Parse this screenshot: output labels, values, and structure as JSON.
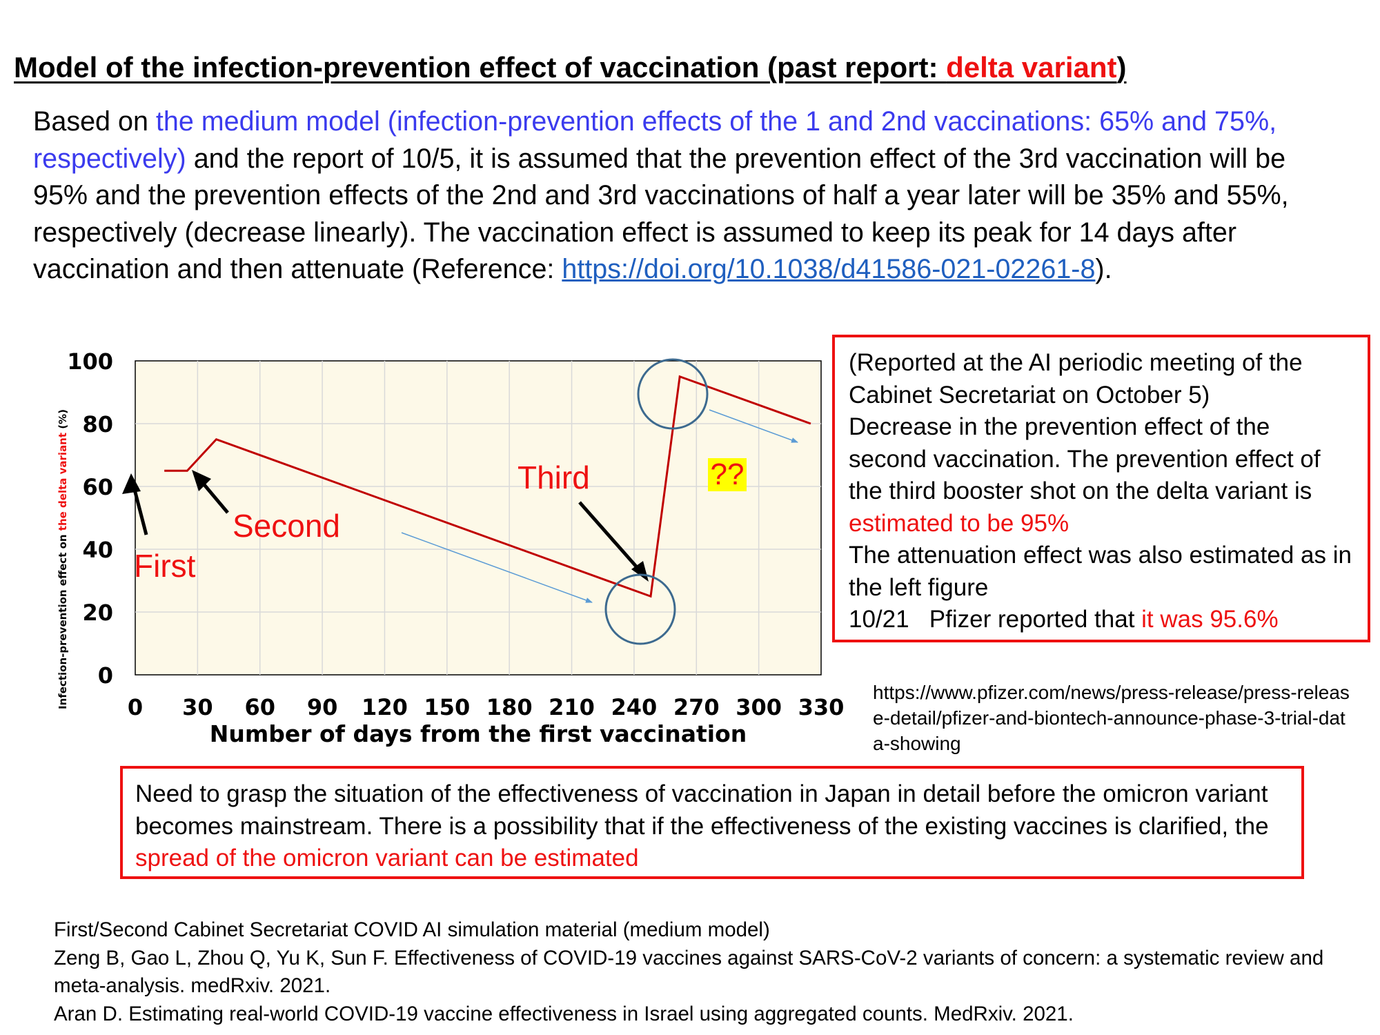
{
  "title": {
    "main": "Model of the infection-prevention effect of vaccination (past report: ",
    "highlight": "delta variant",
    "close": ")"
  },
  "intro": {
    "p1": "Based on ",
    "p2_blue": "the medium model (infection-prevention effects of the 1 and 2nd vaccinations: 65% and 75%, respectively)",
    "p3": " and the report of 10/5, it is assumed that the prevention effect of the 3rd vaccination will be 95% and the prevention effects of the 2nd and 3rd vaccinations of half a year later will be 35% and 55%, respectively (decrease linearly). The vaccination effect is assumed to keep its peak for 14 days after vaccination and then attenuate (Reference: ",
    "link": "https://doi.org/10.1038/d41586-021-02261-8",
    "p4": ")."
  },
  "annotation_box": {
    "line1": "(Reported at the AI periodic meeting of the Cabinet Secretariat on October 5)",
    "line2": "Decrease in the prevention effect of the second vaccination. The prevention effect of the third booster shot on the delta variant is ",
    "line2_red": "estimated to be 95%",
    "line3": "The attenuation effect was also estimated as in the left figure",
    "line4": "10/21   Pfizer reported that ",
    "line4_red": "it was 95.6%"
  },
  "source_link": "https://www.pfizer.com/news/press-release/press-release-detail/pfizer-and-biontech-announce-phase-3-trial-data-showing",
  "need_box": {
    "text": "Need to grasp the situation of the effectiveness of vaccination in Japan in detail before the omicron variant becomes mainstream. There is a possibility that if the effectiveness of the existing vaccines is clarified, the ",
    "text_red": "spread of the omicron variant can be estimated"
  },
  "references": [
    "First/Second Cabinet Secretariat COVID AI simulation material (medium model)",
    "Zeng B, Gao L, Zhou Q, Yu K, Sun F. Effectiveness of COVID-19 vaccines against SARS-CoV-2 variants of concern: a systematic review and meta-analysis. medRxiv. 2021.",
    "Aran D. Estimating real-world COVID-19 vaccine effectiveness in Israel using aggregated counts. MedRxiv. 2021."
  ],
  "colors": {
    "line": "#c00000",
    "plot_bg": "#fdf9e8",
    "accent_red": "#ee1111",
    "circle": "#3d6a8f",
    "thin_arrow": "#5b9bd5",
    "highlight_bg": "#ffff00"
  },
  "chart_data": {
    "type": "line",
    "xlabel": "Number of days from the first vaccination",
    "ylabel": "Infection-prevention effect on the delta variant (%)",
    "ylabel_parts": [
      "Infection-prevention effect on ",
      "the delta variant",
      " (%)"
    ],
    "xlim": [
      0,
      330
    ],
    "ylim": [
      0,
      100
    ],
    "x_ticks": [
      0,
      30,
      60,
      90,
      120,
      150,
      180,
      210,
      240,
      270,
      300,
      330
    ],
    "y_ticks": [
      0,
      20,
      40,
      60,
      80,
      100
    ],
    "grid": true,
    "series": [
      {
        "x": [
          14,
          25,
          39,
          248,
          262,
          325
        ],
        "y": [
          65,
          65,
          75,
          25,
          95,
          80
        ]
      }
    ],
    "annotations": [
      {
        "text": "First",
        "x": 0,
        "y": 60,
        "color": "#ee1111"
      },
      {
        "text": "Second",
        "x": 28,
        "y": 65,
        "color": "#ee1111"
      },
      {
        "text": "Third",
        "x": 248,
        "y": 25,
        "color": "#ee1111"
      },
      {
        "text": "??",
        "color": "#ee1111",
        "highlight": "#ffff00"
      }
    ]
  }
}
